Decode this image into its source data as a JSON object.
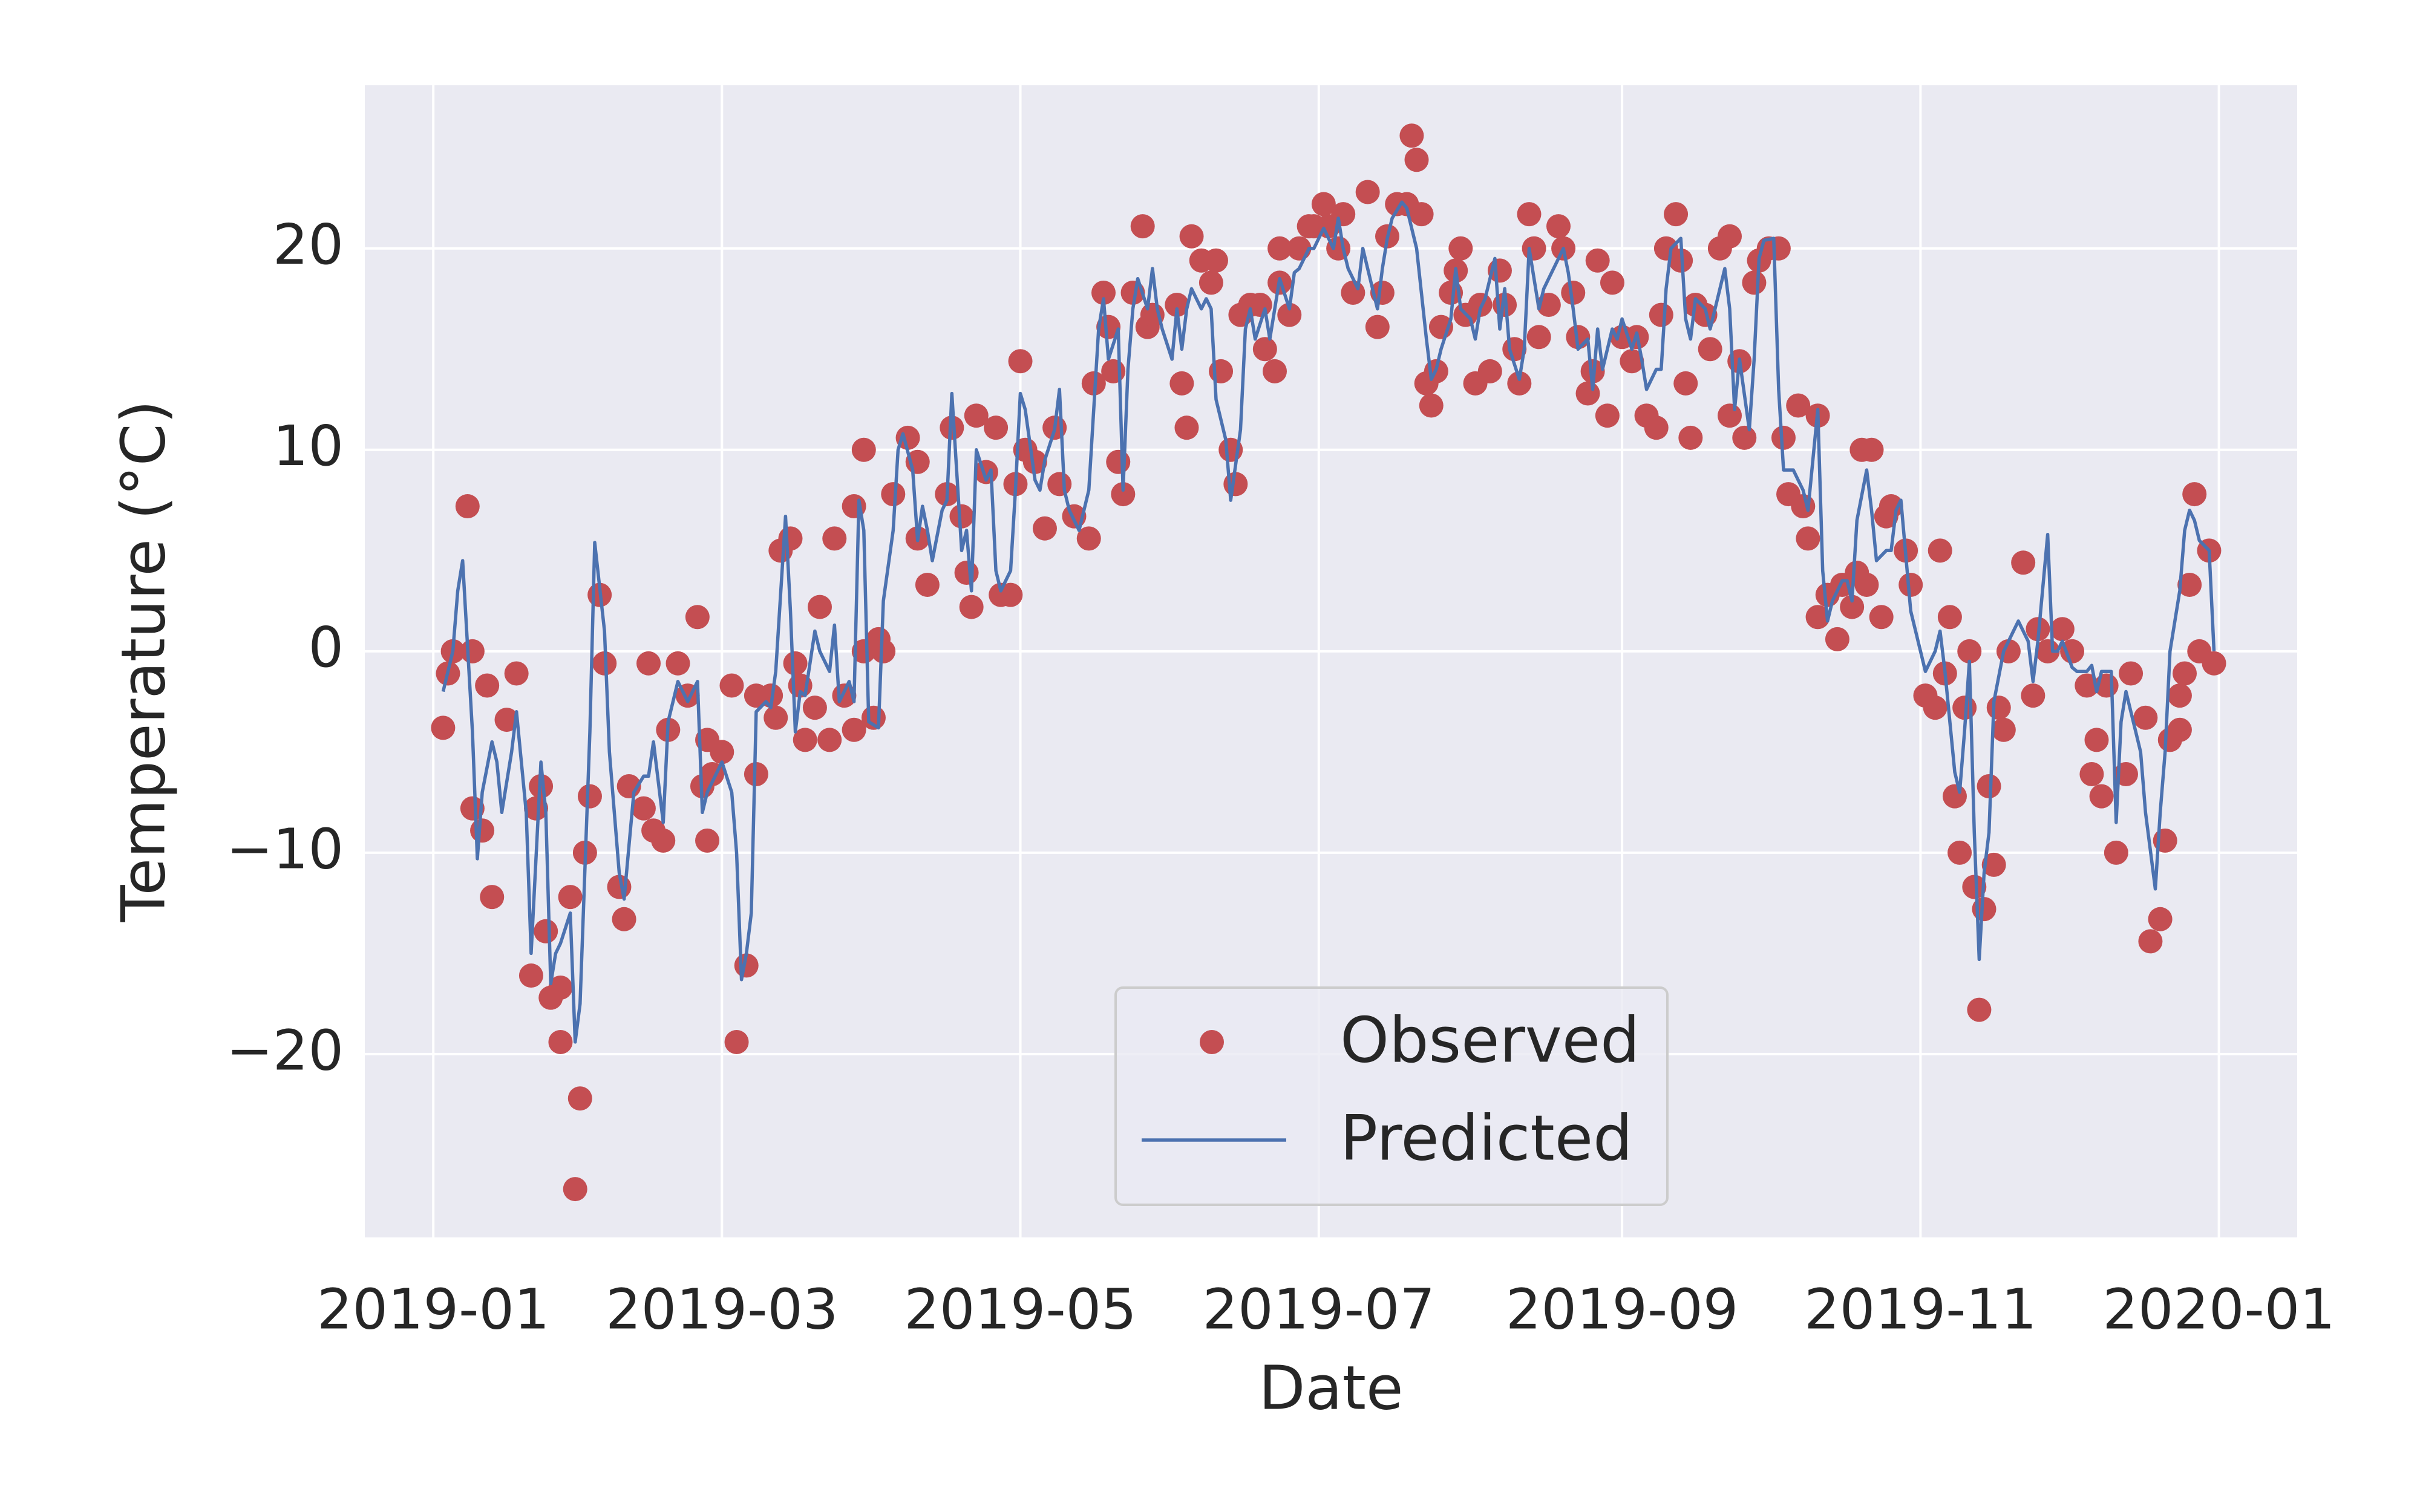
{
  "chart_data": {
    "type": "scatter-line",
    "xlabel": "Date",
    "ylabel": "Temperature (°C)",
    "xlim": [
      -14,
      381
    ],
    "ylim": [
      -29.1,
      28.1
    ],
    "xticks": [
      {
        "value": 0,
        "label": "2019-01"
      },
      {
        "value": 59,
        "label": "2019-03"
      },
      {
        "value": 120,
        "label": "2019-05"
      },
      {
        "value": 181,
        "label": "2019-07"
      },
      {
        "value": 243,
        "label": "2019-09"
      },
      {
        "value": 304,
        "label": "2019-11"
      },
      {
        "value": 365,
        "label": "2020-01"
      }
    ],
    "yticks": [
      {
        "value": -20,
        "label": "−20"
      },
      {
        "value": -10,
        "label": "−10"
      },
      0,
      10,
      20
    ],
    "grid": true,
    "legend": "lower center",
    "background": "#eaeaf2",
    "series": [
      {
        "name": "Observed",
        "kind": "markers",
        "color": "#c44e52",
        "x": [
          2,
          3,
          4,
          7,
          8,
          8,
          10,
          11,
          12,
          15,
          17,
          20,
          21,
          22,
          23,
          24,
          26,
          26,
          28,
          29,
          30,
          31,
          32,
          34,
          35,
          38,
          39,
          40,
          43,
          44,
          45,
          47,
          48,
          50,
          52,
          54,
          55,
          56,
          56,
          57,
          59,
          61,
          62,
          64,
          66,
          66,
          69,
          70,
          71,
          73,
          74,
          75,
          76,
          78,
          79,
          81,
          82,
          84,
          86,
          86,
          88,
          88,
          90,
          91,
          92,
          94,
          97,
          99,
          99,
          101,
          105,
          106,
          108,
          109,
          110,
          111,
          113,
          115,
          116,
          118,
          119,
          120,
          121,
          123,
          125,
          127,
          128,
          131,
          134,
          135,
          137,
          138,
          139,
          140,
          141,
          143,
          145,
          146,
          147,
          152,
          153,
          154,
          155,
          157,
          159,
          160,
          161,
          163,
          164,
          165,
          167,
          169,
          170,
          172,
          173,
          173,
          175,
          177,
          179,
          180,
          182,
          183,
          185,
          186,
          188,
          191,
          193,
          194,
          195,
          197,
          199,
          200,
          201,
          202,
          203,
          204,
          205,
          206,
          208,
          209,
          210,
          211,
          213,
          214,
          216,
          218,
          219,
          221,
          222,
          224,
          225,
          226,
          228,
          230,
          231,
          233,
          234,
          236,
          237,
          238,
          240,
          241,
          243,
          245,
          246,
          248,
          250,
          251,
          252,
          254,
          255,
          256,
          257,
          258,
          260,
          261,
          263,
          265,
          265,
          267,
          268,
          270,
          271,
          273,
          275,
          276,
          277,
          279,
          280,
          281,
          283,
          283,
          285,
          287,
          288,
          290,
          291,
          292,
          293,
          294,
          296,
          297,
          298,
          301,
          302,
          305,
          307,
          308,
          309,
          310,
          311,
          312,
          313,
          314,
          315,
          316,
          317,
          318,
          319,
          320,
          321,
          322,
          325,
          327,
          328,
          330,
          333,
          335,
          338,
          339,
          340,
          341,
          342,
          344,
          346,
          347,
          350,
          351,
          353,
          354,
          355,
          357,
          357,
          358,
          359,
          360,
          361,
          363,
          364
        ],
        "values": [
          -3.8,
          -1.1,
          0,
          7.2,
          0,
          -7.8,
          -8.9,
          -1.7,
          -12.2,
          -3.4,
          -1.1,
          -16.1,
          -7.8,
          -6.7,
          -13.9,
          -17.2,
          -19.4,
          -16.7,
          -12.2,
          -26.7,
          -22.2,
          -10,
          -7.2,
          2.8,
          -0.6,
          -11.7,
          -13.3,
          -6.7,
          -7.8,
          -0.6,
          -8.9,
          -9.4,
          -3.9,
          -0.6,
          -2.2,
          1.7,
          -6.7,
          -9.4,
          -4.4,
          -6.1,
          -5,
          -1.7,
          -19.4,
          -15.6,
          -6.1,
          -2.2,
          -2.2,
          -3.3,
          5,
          5.6,
          -0.6,
          -1.7,
          -4.4,
          -2.8,
          2.2,
          -4.4,
          5.6,
          -2.2,
          -3.9,
          7.2,
          10,
          0,
          -3.3,
          0.6,
          0,
          7.8,
          10.6,
          9.4,
          5.6,
          3.3,
          7.8,
          11.1,
          6.7,
          3.9,
          2.2,
          11.7,
          8.9,
          11.1,
          2.8,
          2.8,
          8.3,
          14.4,
          10,
          9.4,
          6.1,
          11.1,
          8.3,
          6.7,
          5.6,
          13.3,
          17.8,
          16.1,
          13.9,
          9.4,
          7.8,
          17.8,
          21.1,
          16.1,
          16.7,
          17.2,
          13.3,
          11.1,
          20.6,
          19.4,
          18.3,
          19.4,
          13.9,
          10,
          8.3,
          16.7,
          17.2,
          17.2,
          15,
          13.9,
          18.3,
          20,
          16.7,
          20,
          21.1,
          21.1,
          22.2,
          21.1,
          20,
          21.7,
          17.8,
          22.8,
          16.1,
          17.8,
          20.6,
          22.2,
          22.2,
          25.6,
          24.4,
          21.7,
          13.3,
          12.2,
          13.9,
          16.1,
          17.8,
          18.9,
          20,
          16.7,
          13.3,
          17.2,
          13.9,
          18.9,
          17.2,
          15,
          13.3,
          21.7,
          20,
          15.6,
          17.2,
          21.1,
          20,
          17.8,
          15.6,
          12.8,
          13.9,
          19.4,
          11.7,
          18.3,
          15.6,
          14.4,
          15.6,
          11.7,
          11.1,
          16.7,
          20,
          21.7,
          19.4,
          13.3,
          10.6,
          17.2,
          16.7,
          15,
          20,
          20.6,
          11.7,
          14.4,
          10.6,
          18.3,
          19.4,
          20,
          20,
          10.6,
          7.8,
          12.2,
          7.2,
          5.6,
          11.7,
          1.7,
          2.8,
          0.6,
          3.3,
          2.2,
          3.9,
          10,
          3.3,
          10,
          1.7,
          6.7,
          7.2,
          5,
          3.3,
          -2.2,
          -2.8,
          5,
          -1.1,
          1.7,
          -7.2,
          -10,
          -2.8,
          0,
          -11.7,
          -17.8,
          -12.8,
          -6.7,
          -10.6,
          -2.8,
          -3.9,
          0,
          4.4,
          -2.2,
          1.1,
          0,
          1.1,
          0,
          -1.7,
          -6.1,
          -4.4,
          -7.2,
          -1.7,
          -10,
          -6.1,
          -1.1,
          -3.3,
          -14.4,
          -13.3,
          -9.4,
          -4.4,
          -3.9,
          -2.2,
          -1.1,
          3.3,
          7.8,
          0,
          5,
          -0.6
        ]
      },
      {
        "name": "Predicted",
        "kind": "line",
        "color": "#4c72b0",
        "x": [
          2,
          4,
          5,
          6,
          8,
          9,
          10,
          12,
          13,
          14,
          16,
          17,
          19,
          20,
          22,
          23,
          24,
          25,
          26,
          28,
          29,
          30,
          32,
          33,
          35,
          36,
          38,
          39,
          41,
          43,
          44,
          45,
          47,
          48,
          49,
          50,
          52,
          54,
          55,
          56,
          57,
          59,
          61,
          62,
          63,
          64,
          65,
          66,
          68,
          69,
          70,
          72,
          73,
          74,
          75,
          76,
          78,
          79,
          81,
          82,
          83,
          85,
          86,
          87,
          88,
          89,
          91,
          92,
          94,
          95,
          96,
          98,
          99,
          100,
          101,
          102,
          104,
          105,
          106,
          108,
          109,
          110,
          111,
          113,
          114,
          115,
          116,
          118,
          119,
          120,
          121,
          123,
          124,
          125,
          127,
          128,
          129,
          130,
          132,
          134,
          135,
          136,
          137,
          138,
          140,
          141,
          142,
          143,
          144,
          146,
          147,
          148,
          149,
          151,
          152,
          153,
          154,
          155,
          157,
          158,
          159,
          160,
          162,
          163,
          165,
          166,
          167,
          168,
          170,
          171,
          172,
          173,
          175,
          176,
          177,
          179,
          180,
          181,
          182,
          184,
          185,
          186,
          187,
          189,
          190,
          191,
          193,
          194,
          195,
          196,
          198,
          199,
          200,
          201,
          203,
          204,
          205,
          206,
          208,
          209,
          210,
          212,
          213,
          214,
          215,
          217,
          218,
          219,
          220,
          222,
          223,
          224,
          226,
          227,
          228,
          229,
          231,
          232,
          233,
          234,
          236,
          237,
          238,
          239,
          241,
          242,
          243,
          245,
          246,
          247,
          248,
          250,
          251,
          252,
          253,
          255,
          256,
          257,
          258,
          260,
          261,
          262,
          264,
          265,
          266,
          267,
          269,
          270,
          271,
          272,
          274,
          275,
          276,
          278,
          279,
          280,
          281,
          283,
          284,
          285,
          286,
          288,
          289,
          290,
          291,
          293,
          294,
          295,
          297,
          298,
          299,
          300,
          302,
          303,
          304,
          305,
          307,
          308,
          309,
          311,
          312,
          313,
          314,
          315,
          316,
          317,
          318,
          319,
          321,
          322,
          323,
          324,
          326,
          327,
          328,
          330,
          331,
          332,
          333,
          335,
          336,
          338,
          339,
          340,
          341,
          343,
          344,
          345,
          346,
          348,
          349,
          350,
          352,
          353,
          354,
          355,
          357,
          358,
          359,
          360,
          361,
          363,
          364
        ],
        "values": [
          -2,
          0,
          3,
          4.5,
          -4,
          -10.3,
          -7,
          -4.5,
          -5.5,
          -8,
          -5,
          -3,
          -8,
          -15,
          -5.5,
          -8,
          -16.5,
          -15,
          -14.5,
          -13,
          -19.4,
          -17.5,
          -4,
          5.4,
          1,
          -5,
          -11,
          -12.3,
          -7,
          -6.2,
          -6.2,
          -4.5,
          -8.5,
          -3.5,
          -2.5,
          -1.5,
          -2.5,
          -1.5,
          -8,
          -7,
          -6.5,
          -5.5,
          -7,
          -10,
          -16.3,
          -15,
          -13,
          -3,
          -2.5,
          -2.8,
          -1,
          6.7,
          2,
          -4,
          -2,
          -2.2,
          1,
          0,
          -1,
          1.3,
          -2.5,
          -1.5,
          -2.5,
          7.5,
          6,
          -3.5,
          -3.8,
          2.5,
          6,
          10,
          10.8,
          9,
          5.5,
          7.2,
          6,
          4.5,
          7,
          7.5,
          12.8,
          5,
          6,
          3,
          10,
          8.5,
          9,
          4,
          3,
          4,
          8,
          12.8,
          12,
          8.5,
          8,
          9.5,
          11,
          13,
          8,
          7,
          6,
          8,
          12,
          16,
          17.5,
          14.5,
          16,
          8,
          14,
          17,
          18.5,
          17,
          19,
          17,
          16,
          14.5,
          17,
          15,
          17,
          18,
          17,
          17.5,
          17,
          12.5,
          10.5,
          7.5,
          11,
          16,
          17,
          15.5,
          17,
          15.5,
          17,
          18.5,
          17,
          18.8,
          19,
          20,
          20,
          20.5,
          21,
          20,
          21.5,
          20,
          19,
          18,
          20,
          19,
          17,
          19,
          20.5,
          21.5,
          22.3,
          22,
          21,
          20,
          15.5,
          13.5,
          14,
          15,
          16.5,
          19,
          17,
          16.5,
          15.5,
          17,
          17.5,
          19.5,
          16,
          18,
          15,
          13.5,
          15,
          20,
          17,
          18,
          18.5,
          19,
          20,
          18.8,
          17,
          15,
          15.5,
          13,
          16,
          14,
          16,
          15.5,
          16.5,
          15,
          15.8,
          14.5,
          13,
          14,
          14,
          18,
          20,
          20.5,
          16.5,
          15.5,
          17.5,
          17,
          16,
          17,
          19,
          17,
          12,
          14.5,
          11,
          14.5,
          19.5,
          20.4,
          20.5,
          13,
          9,
          9,
          8.5,
          8,
          7,
          12,
          4,
          1.5,
          2.5,
          3.5,
          3.5,
          2.5,
          6.5,
          9,
          7,
          4.5,
          5,
          5,
          7,
          7.5,
          2,
          1,
          0,
          -1,
          0,
          1,
          -1,
          -6,
          -7,
          -4,
          -0.5,
          -9,
          -15.3,
          -11,
          -9,
          -2.5,
          0,
          0.5,
          1,
          1.5,
          0.5,
          -1.5,
          0.5,
          5.8,
          0,
          0,
          0.5,
          -0.8,
          -1,
          -1,
          -0.7,
          -2,
          -1,
          -1,
          -8.5,
          -3.5,
          -2,
          -4,
          -5,
          -8,
          -11.8,
          -8,
          -5,
          0,
          3,
          6,
          7,
          6.5,
          5.5,
          5,
          0
        ]
      }
    ]
  }
}
